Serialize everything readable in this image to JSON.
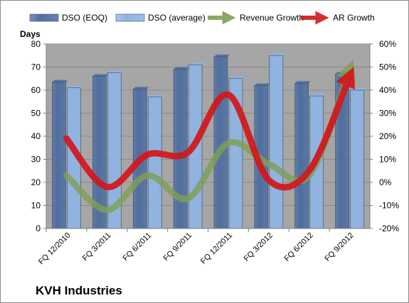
{
  "chart_data": {
    "type": "bar",
    "title": "KVH Industries",
    "categories": [
      "FQ 12/2010",
      "FQ 3/2011",
      "FQ 6/2011",
      "FQ 9/2011",
      "FQ 12/2011",
      "FQ 3/2012",
      "FQ 6/2012",
      "FQ 9/2012"
    ],
    "ylabel": "Days",
    "ylim": [
      0,
      80
    ],
    "yticks": [
      "0",
      "10",
      "20",
      "30",
      "40",
      "50",
      "60",
      "70",
      "80"
    ],
    "y2lim": [
      -20,
      60
    ],
    "y2ticks": [
      "-20%",
      "-10%",
      "0%",
      "10%",
      "20%",
      "30%",
      "40%",
      "50%",
      "60%"
    ],
    "series": [
      {
        "name": "DSO (EOQ)",
        "kind": "bar",
        "axis": "left",
        "color": "#4f6fa0",
        "values": [
          63.5,
          66,
          60.5,
          69,
          74.5,
          62,
          63,
          67
        ]
      },
      {
        "name": "DSO (average)",
        "kind": "bar",
        "axis": "left",
        "color": "#8fb4e3",
        "values": [
          61,
          67.5,
          57,
          71,
          65,
          75,
          57.5,
          60
        ]
      },
      {
        "name": "Revenue Growth",
        "kind": "line",
        "axis": "right",
        "color": "#7fa055",
        "values": [
          3,
          -12,
          3,
          -7,
          17,
          8,
          3,
          49
        ]
      },
      {
        "name": "AR Growth",
        "kind": "line",
        "axis": "right",
        "color": "#d4161c",
        "values": [
          19,
          -2,
          12,
          13,
          38,
          1,
          5,
          46
        ]
      }
    ],
    "plot_background": "#a6a6a6",
    "legend": "top",
    "grid": true
  }
}
